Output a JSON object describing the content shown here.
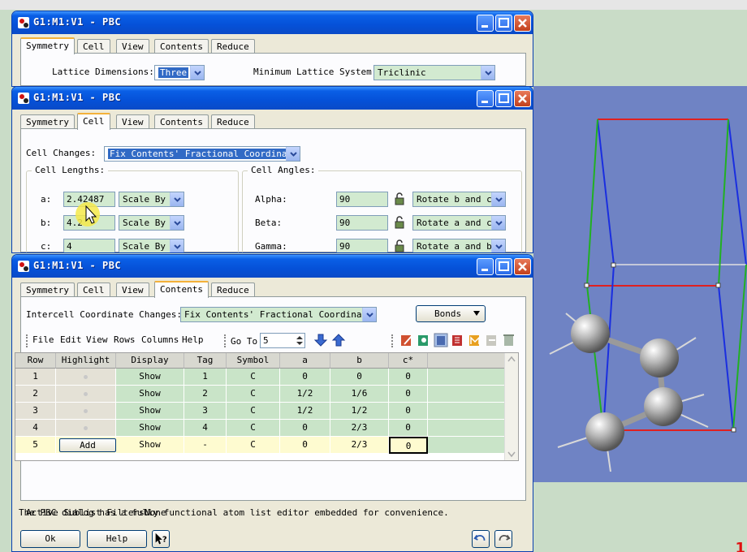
{
  "window1": {
    "title": "G1:M1:V1 - PBC",
    "tabs": [
      "Symmetry",
      "Cell",
      "View",
      "Contents",
      "Reduce"
    ],
    "active_tab": "Symmetry",
    "lattice_label": "Lattice Dimensions:",
    "lattice_value": "Three",
    "min_lattice_label": "Minimum Lattice System:",
    "min_lattice_value": "Triclinic"
  },
  "window2": {
    "title": "G1:M1:V1 - PBC",
    "tabs": [
      "Symmetry",
      "Cell",
      "View",
      "Contents",
      "Reduce"
    ],
    "active_tab": "Cell",
    "cell_changes_label": "Cell Changes:",
    "cell_changes_value": "Fix Contents' Fractional Coordinates",
    "lengths_title": "Cell Lengths:",
    "angles_title": "Cell Angles:",
    "lengths": [
      {
        "label": "a:",
        "value": "2.42487",
        "mode": "Scale By"
      },
      {
        "label": "b:",
        "value": "4.2",
        "mode": "Scale By"
      },
      {
        "label": "c:",
        "value": "4",
        "mode": "Scale By"
      }
    ],
    "angles": [
      {
        "label": "Alpha:",
        "value": "90",
        "mode": "Rotate b and c"
      },
      {
        "label": "Beta:",
        "value": "90",
        "mode": "Rotate a and c"
      },
      {
        "label": "Gamma:",
        "value": "90",
        "mode": "Rotate a and b"
      }
    ]
  },
  "window3": {
    "title": "G1:M1:V1 - PBC",
    "tabs": [
      "Symmetry",
      "Cell",
      "View",
      "Contents",
      "Reduce"
    ],
    "active_tab": "Contents",
    "intercell_label": "Intercell Coordinate Changes:",
    "intercell_value": "Fix Contents' Fractional Coordinates",
    "bonds_label": "Bonds",
    "menu": [
      "File",
      "Edit",
      "View",
      "Rows",
      "Columns",
      "Help"
    ],
    "goto_label": "Go To",
    "goto_value": "5",
    "columns": [
      "Row",
      "Highlight",
      "Display",
      "Tag",
      "Symbol",
      "a",
      "b",
      "c*"
    ],
    "rows": [
      {
        "row": "1",
        "highlight": "",
        "display": "Show",
        "tag": "1",
        "symbol": "C",
        "a": "0",
        "b": "0",
        "c": "0"
      },
      {
        "row": "2",
        "highlight": "",
        "display": "Show",
        "tag": "2",
        "symbol": "C",
        "a": "1/2",
        "b": "1/6",
        "c": "0"
      },
      {
        "row": "3",
        "highlight": "",
        "display": "Show",
        "tag": "3",
        "symbol": "C",
        "a": "1/2",
        "b": "1/2",
        "c": "0"
      },
      {
        "row": "4",
        "highlight": "",
        "display": "Show",
        "tag": "4",
        "symbol": "C",
        "a": "0",
        "b": "2/3",
        "c": "0"
      },
      {
        "row": "5",
        "highlight": "Add",
        "display": "Show",
        "tag": "-",
        "symbol": "C",
        "a": "0",
        "b": "2/3",
        "c": "0"
      }
    ],
    "filters_label": "Active Sublist Filters:",
    "filters_value": "None",
    "status": "The PBC dialog has a fully functional atom list editor embedded for convenience.",
    "ok_label": "Ok",
    "help_label": "Help"
  },
  "caption_fragment": "1",
  "colors": {
    "titlebar": "#0551d8",
    "viewer_bg": "#6f83c4",
    "cell_green": "#c9e4c8",
    "new_row_yellow": "#fefbd0",
    "axis_a": "#e02020",
    "axis_b": "#22b022",
    "axis_c": "#1a2ee0"
  }
}
